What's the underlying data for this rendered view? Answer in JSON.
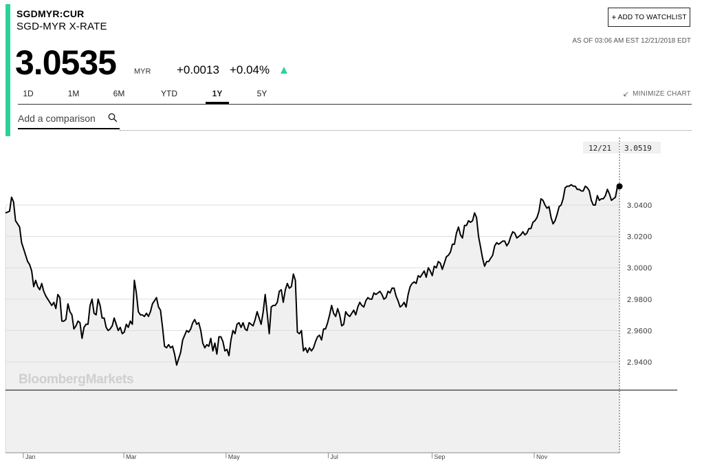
{
  "header": {
    "symbol": "SGDMYR:CUR",
    "name": "SGD-MYR X-RATE",
    "price": "3.0535",
    "currency": "MYR",
    "change_abs": "+0.0013",
    "change_pct": "+0.04%",
    "trend_icon": "up-triangle-icon",
    "accent_color": "#2bd29a",
    "watchlist_label": "ADD TO WATCHLIST",
    "as_of": "AS OF 03:06 AM EST 12/21/2018 EDT"
  },
  "tabs": [
    {
      "label": "1D",
      "active": false
    },
    {
      "label": "1M",
      "active": false
    },
    {
      "label": "6M",
      "active": false
    },
    {
      "label": "YTD",
      "active": false
    },
    {
      "label": "1Y",
      "active": true
    },
    {
      "label": "5Y",
      "active": false
    }
  ],
  "minimize_label": "MINIMIZE CHART",
  "compare_placeholder": "Add a comparison",
  "chart_data": {
    "type": "line",
    "watermark": "BloombergMarkets",
    "last_point": {
      "date": "12/21",
      "value": "3.0519"
    },
    "y_ticks": [
      "3.0400",
      "3.0200",
      "3.0000",
      "2.9800",
      "2.9600",
      "2.9400"
    ],
    "ylim": [
      2.92,
      3.061
    ],
    "x_ticks": [
      "Jan",
      "Mar",
      "May",
      "Jul",
      "Sep",
      "Nov"
    ],
    "x_tick_positions": [
      0.0,
      0.1644,
      0.3315,
      0.4987,
      0.6685,
      0.8356
    ],
    "line_color": "#000000",
    "fill_color": "#f0f0f0",
    "grid": true,
    "series": [
      {
        "values": [
          3.035,
          3.0355,
          3.036,
          3.045,
          3.042,
          3.03,
          3.028,
          3.026,
          3.016,
          3.012,
          3.008,
          3.004,
          3.002,
          2.998,
          2.988,
          2.992,
          2.988,
          2.986,
          2.99,
          2.985,
          2.982,
          2.98,
          2.978,
          2.976,
          2.978,
          2.974,
          2.983,
          2.981,
          2.966,
          2.966,
          2.967,
          2.977,
          2.972,
          2.97,
          2.961,
          2.963,
          2.966,
          2.965,
          2.955,
          2.962,
          2.964,
          2.964,
          2.976,
          2.98,
          2.971,
          2.97,
          2.98,
          2.976,
          2.968,
          2.968,
          2.962,
          2.96,
          2.961,
          2.963,
          2.968,
          2.964,
          2.96,
          2.962,
          2.958,
          2.959,
          2.964,
          2.962,
          2.966,
          2.964,
          2.992,
          2.984,
          2.972,
          2.97,
          2.97,
          2.969,
          2.971,
          2.969,
          2.972,
          2.977,
          2.979,
          2.981,
          2.975,
          2.973,
          2.962,
          2.95,
          2.949,
          2.951,
          2.949,
          2.95,
          2.945,
          2.938,
          2.942,
          2.946,
          2.954,
          2.957,
          2.96,
          2.959,
          2.961,
          2.965,
          2.967,
          2.964,
          2.965,
          2.96,
          2.952,
          2.949,
          2.951,
          2.95,
          2.955,
          2.947,
          2.952,
          2.945,
          2.956,
          2.956,
          2.953,
          2.947,
          2.948,
          2.944,
          2.954,
          2.96,
          2.958,
          2.964,
          2.965,
          2.962,
          2.965,
          2.961,
          2.96,
          2.965,
          2.964,
          2.963,
          2.967,
          2.972,
          2.968,
          2.964,
          2.972,
          2.983,
          2.971,
          2.958,
          2.975,
          2.976,
          2.976,
          2.978,
          2.985,
          2.986,
          2.978,
          2.986,
          2.99,
          2.987,
          2.988,
          2.996,
          2.992,
          2.959,
          2.958,
          2.96,
          2.947,
          2.949,
          2.946,
          2.949,
          2.947,
          2.949,
          2.953,
          2.956,
          2.957,
          2.954,
          2.961,
          2.961,
          2.965,
          2.97,
          2.976,
          2.971,
          2.969,
          2.974,
          2.97,
          2.963,
          2.964,
          2.972,
          2.97,
          2.969,
          2.971,
          2.973,
          2.97,
          2.975,
          2.978,
          2.976,
          2.975,
          2.979,
          2.981,
          2.98,
          2.98,
          2.984,
          2.983,
          2.984,
          2.985,
          2.983,
          2.98,
          2.981,
          2.985,
          2.984,
          2.987,
          2.987,
          2.982,
          2.979,
          2.975,
          2.976,
          2.978,
          2.975,
          2.983,
          2.988,
          2.99,
          2.991,
          2.99,
          2.995,
          2.994,
          2.996,
          2.998,
          2.994,
          3.0,
          2.998,
          2.995,
          3.001,
          3.0,
          3.004,
          3.003,
          2.999,
          3.003,
          3.007,
          3.008,
          3.01,
          3.015,
          3.015,
          3.022,
          3.026,
          3.021,
          3.019,
          3.027,
          3.027,
          3.03,
          3.029,
          3.03,
          3.035,
          3.032,
          3.02,
          3.013,
          3.006,
          3.001,
          3.004,
          3.004,
          3.006,
          3.008,
          3.014,
          3.016,
          3.015,
          3.016,
          3.017,
          3.017,
          3.014,
          3.016,
          3.02,
          3.023,
          3.022,
          3.019,
          3.02,
          3.021,
          3.023,
          3.021,
          3.022,
          3.025,
          3.025,
          3.029,
          3.03,
          3.032,
          3.036,
          3.044,
          3.043,
          3.04,
          3.038,
          3.039,
          3.032,
          3.028,
          3.03,
          3.034,
          3.039,
          3.04,
          3.044,
          3.051,
          3.052,
          3.052,
          3.053,
          3.052,
          3.052,
          3.05,
          3.05,
          3.049,
          3.049,
          3.052,
          3.051,
          3.049,
          3.043,
          3.04,
          3.04,
          3.046,
          3.043,
          3.044,
          3.044,
          3.046,
          3.05,
          3.047,
          3.043,
          3.044,
          3.045,
          3.052,
          3.0519
        ]
      }
    ]
  }
}
